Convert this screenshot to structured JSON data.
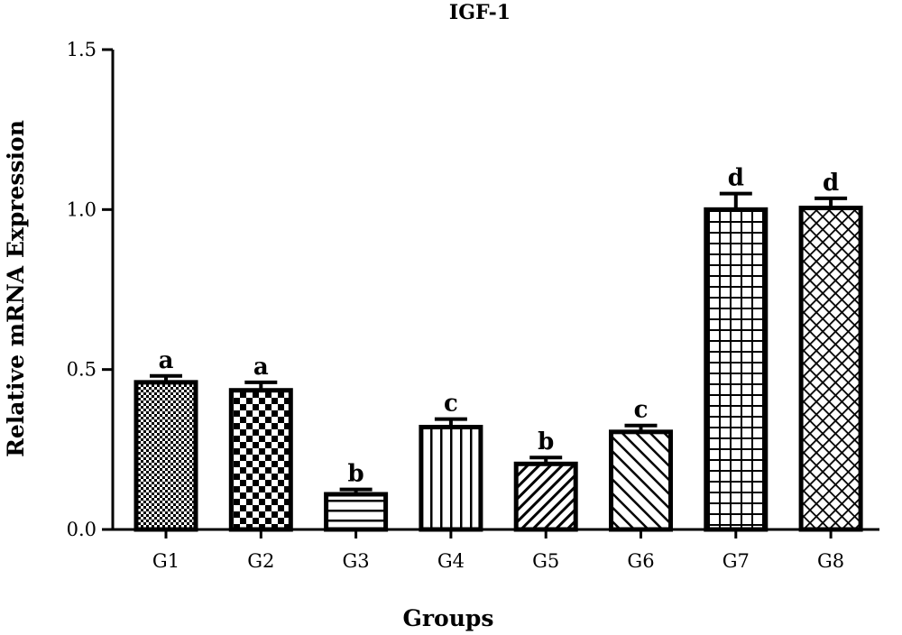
{
  "chart_data": {
    "type": "bar",
    "title": "IGF-1",
    "xlabel": "Groups",
    "ylabel": "Relative mRNA Expression",
    "ylim": [
      0,
      1.5
    ],
    "yticks": [
      0.0,
      0.5,
      1.0,
      1.5
    ],
    "ytick_labels": [
      "0.0",
      "0.5",
      "1.0",
      "1.5"
    ],
    "grid": false,
    "categories": [
      "G1",
      "G2",
      "G3",
      "G4",
      "G5",
      "G6",
      "G7",
      "G8"
    ],
    "values": [
      0.46,
      0.435,
      0.11,
      0.32,
      0.205,
      0.305,
      1.0,
      1.005
    ],
    "errors": [
      0.02,
      0.025,
      0.015,
      0.025,
      0.02,
      0.02,
      0.05,
      0.03
    ],
    "significance_labels": [
      "a",
      "a",
      "b",
      "c",
      "b",
      "c",
      "d",
      "d"
    ],
    "patterns": [
      "fine-checker",
      "checker",
      "horizontal-lines",
      "vertical-lines",
      "diagonal-lines",
      "diagonal-lines-reverse",
      "grid",
      "crosshatch"
    ]
  }
}
